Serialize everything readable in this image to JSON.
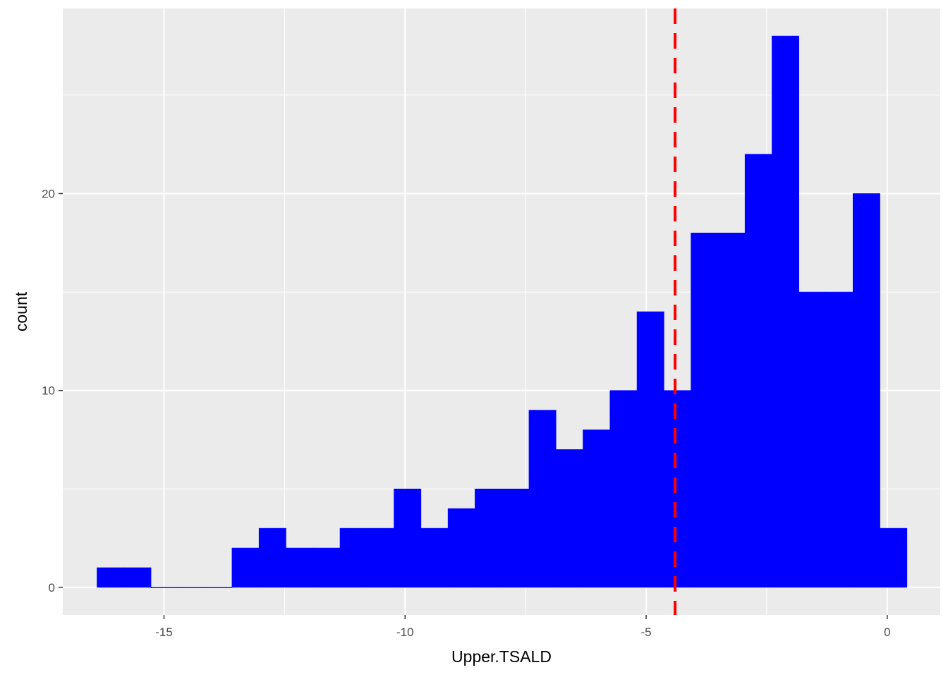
{
  "chart_data": {
    "type": "bar",
    "subtype": "histogram",
    "title": "",
    "xlabel": "Upper.TSALD",
    "ylabel": "count",
    "xlim": [
      -17.1,
      1.1
    ],
    "ylim": [
      -1.4,
      29.4
    ],
    "x_ticks": [
      -15,
      -10,
      -5,
      0
    ],
    "x_tick_labels": [
      "-15",
      "-10",
      "-5",
      "0"
    ],
    "y_ticks": [
      0,
      10,
      20
    ],
    "y_tick_labels": [
      "0",
      "10",
      "20"
    ],
    "grid": true,
    "legend": "none",
    "bin_width": 0.56,
    "bin_start": -16.39,
    "counts": [
      1,
      1,
      0,
      0,
      0,
      2,
      3,
      2,
      2,
      3,
      3,
      5,
      3,
      4,
      5,
      5,
      9,
      7,
      8,
      10,
      14,
      10,
      18,
      18,
      22,
      28,
      15,
      15,
      20,
      3
    ],
    "vline": {
      "x": -4.4,
      "style": "dashed"
    },
    "colors": {
      "bars": "#0000ff",
      "vline": "#ff0000",
      "panel": "#ebebeb",
      "grid": "#ffffff"
    }
  }
}
